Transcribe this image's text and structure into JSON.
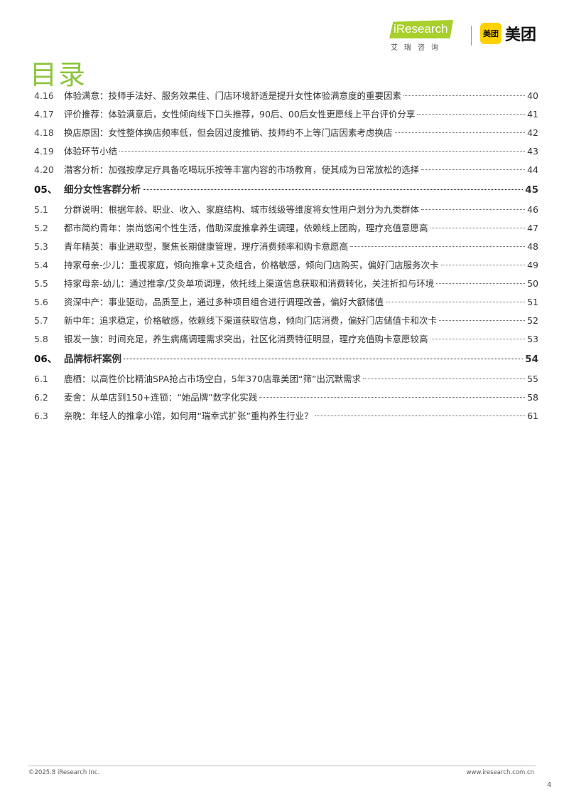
{
  "header": {
    "logo_iresearch": "iResearch",
    "logo_iresearch_sub": "艾瑞咨询",
    "logo_meituan_badge": "美团",
    "logo_meituan": "美团",
    "accent_color": "#8cc63f"
  },
  "title": "目录",
  "toc": [
    {
      "type": "sub",
      "num": "4.16",
      "text": "体验满意：技师手法好、服务效果佳、门店环境舒适是提升女性体验满意度的重要因素",
      "page": "40"
    },
    {
      "type": "sub",
      "num": "4.17",
      "text": "评价推荐：体验满意后，女性倾向线下口头推荐，90后、00后女性更愿线上平台评价分享",
      "page": "41"
    },
    {
      "type": "sub",
      "num": "4.18",
      "text": "换店原因：女性整体换店频率低，但会因过度推销、技师约不上等门店因素考虑换店",
      "page": "42"
    },
    {
      "type": "sub",
      "num": "4.19",
      "text": "体验环节小结",
      "page": "43"
    },
    {
      "type": "sub",
      "num": "4.20",
      "text": "潜客分析：加强按摩足疗具备吃喝玩乐按等丰富内容的市场教育，使其成为日常放松的选择",
      "page": "44"
    },
    {
      "type": "sec",
      "num": "05、",
      "text": "细分女性客群分析",
      "page": "45"
    },
    {
      "type": "sub",
      "num": "5.1",
      "text": "分群说明：根据年龄、职业、收入、家庭结构、城市线级等维度将女性用户划分为九类群体",
      "page": "46"
    },
    {
      "type": "sub",
      "num": "5.2",
      "text": "都市简约青年：崇尚悠闲个性生活，借助深度推拿养生调理，依赖线上团购，理疗充值意愿高",
      "page": "47"
    },
    {
      "type": "sub",
      "num": "5.3",
      "text": "青年精英：事业进取型，聚焦长期健康管理，理疗消费频率和购卡意愿高",
      "page": "48"
    },
    {
      "type": "sub",
      "num": "5.4",
      "text": "持家母亲-少儿：重视家庭，倾向推拿+艾灸组合，价格敏感，倾向门店购买，偏好门店服务次卡",
      "page": "49"
    },
    {
      "type": "sub",
      "num": "5.5",
      "text": "持家母亲-幼儿：通过推拿/艾灸单项调理，依托线上渠道信息获取和消费转化，关注折扣与环境",
      "page": "50"
    },
    {
      "type": "sub",
      "num": "5.6",
      "text": "资深中产：事业驱动，品质至上，通过多种项目组合进行调理改善，偏好大额储值",
      "page": "51"
    },
    {
      "type": "sub",
      "num": "5.7",
      "text": "新中年：追求稳定，价格敏感，依赖线下渠道获取信息，倾向门店消费，偏好门店储值卡和次卡",
      "page": "52"
    },
    {
      "type": "sub",
      "num": "5.8",
      "text": "银发一族：时间充足，养生病痛调理需求突出，社区化消费特征明显，理疗充值购卡意愿较高",
      "page": "53"
    },
    {
      "type": "sec",
      "num": "06、",
      "text": "品牌标杆案例",
      "page": "54"
    },
    {
      "type": "sub",
      "num": "6.1",
      "text": "鹿栖：以高性价比精油SPA抢占市场空白，5年370店靠美团“筛”出沉默需求",
      "page": "55"
    },
    {
      "type": "sub",
      "num": "6.2",
      "text": "麦舍：从单店到150+连锁：“她品牌”数字化实践",
      "page": "58"
    },
    {
      "type": "sub",
      "num": "6.3",
      "text": "奈晚：年轻人的推拿小馆，如何用“瑞幸式扩张”重构养生行业？",
      "page": "61"
    }
  ],
  "footer": {
    "copyright": "©2025.8 iResearch Inc.",
    "website": "www.iresearch.com.cn",
    "page_number": "4"
  }
}
